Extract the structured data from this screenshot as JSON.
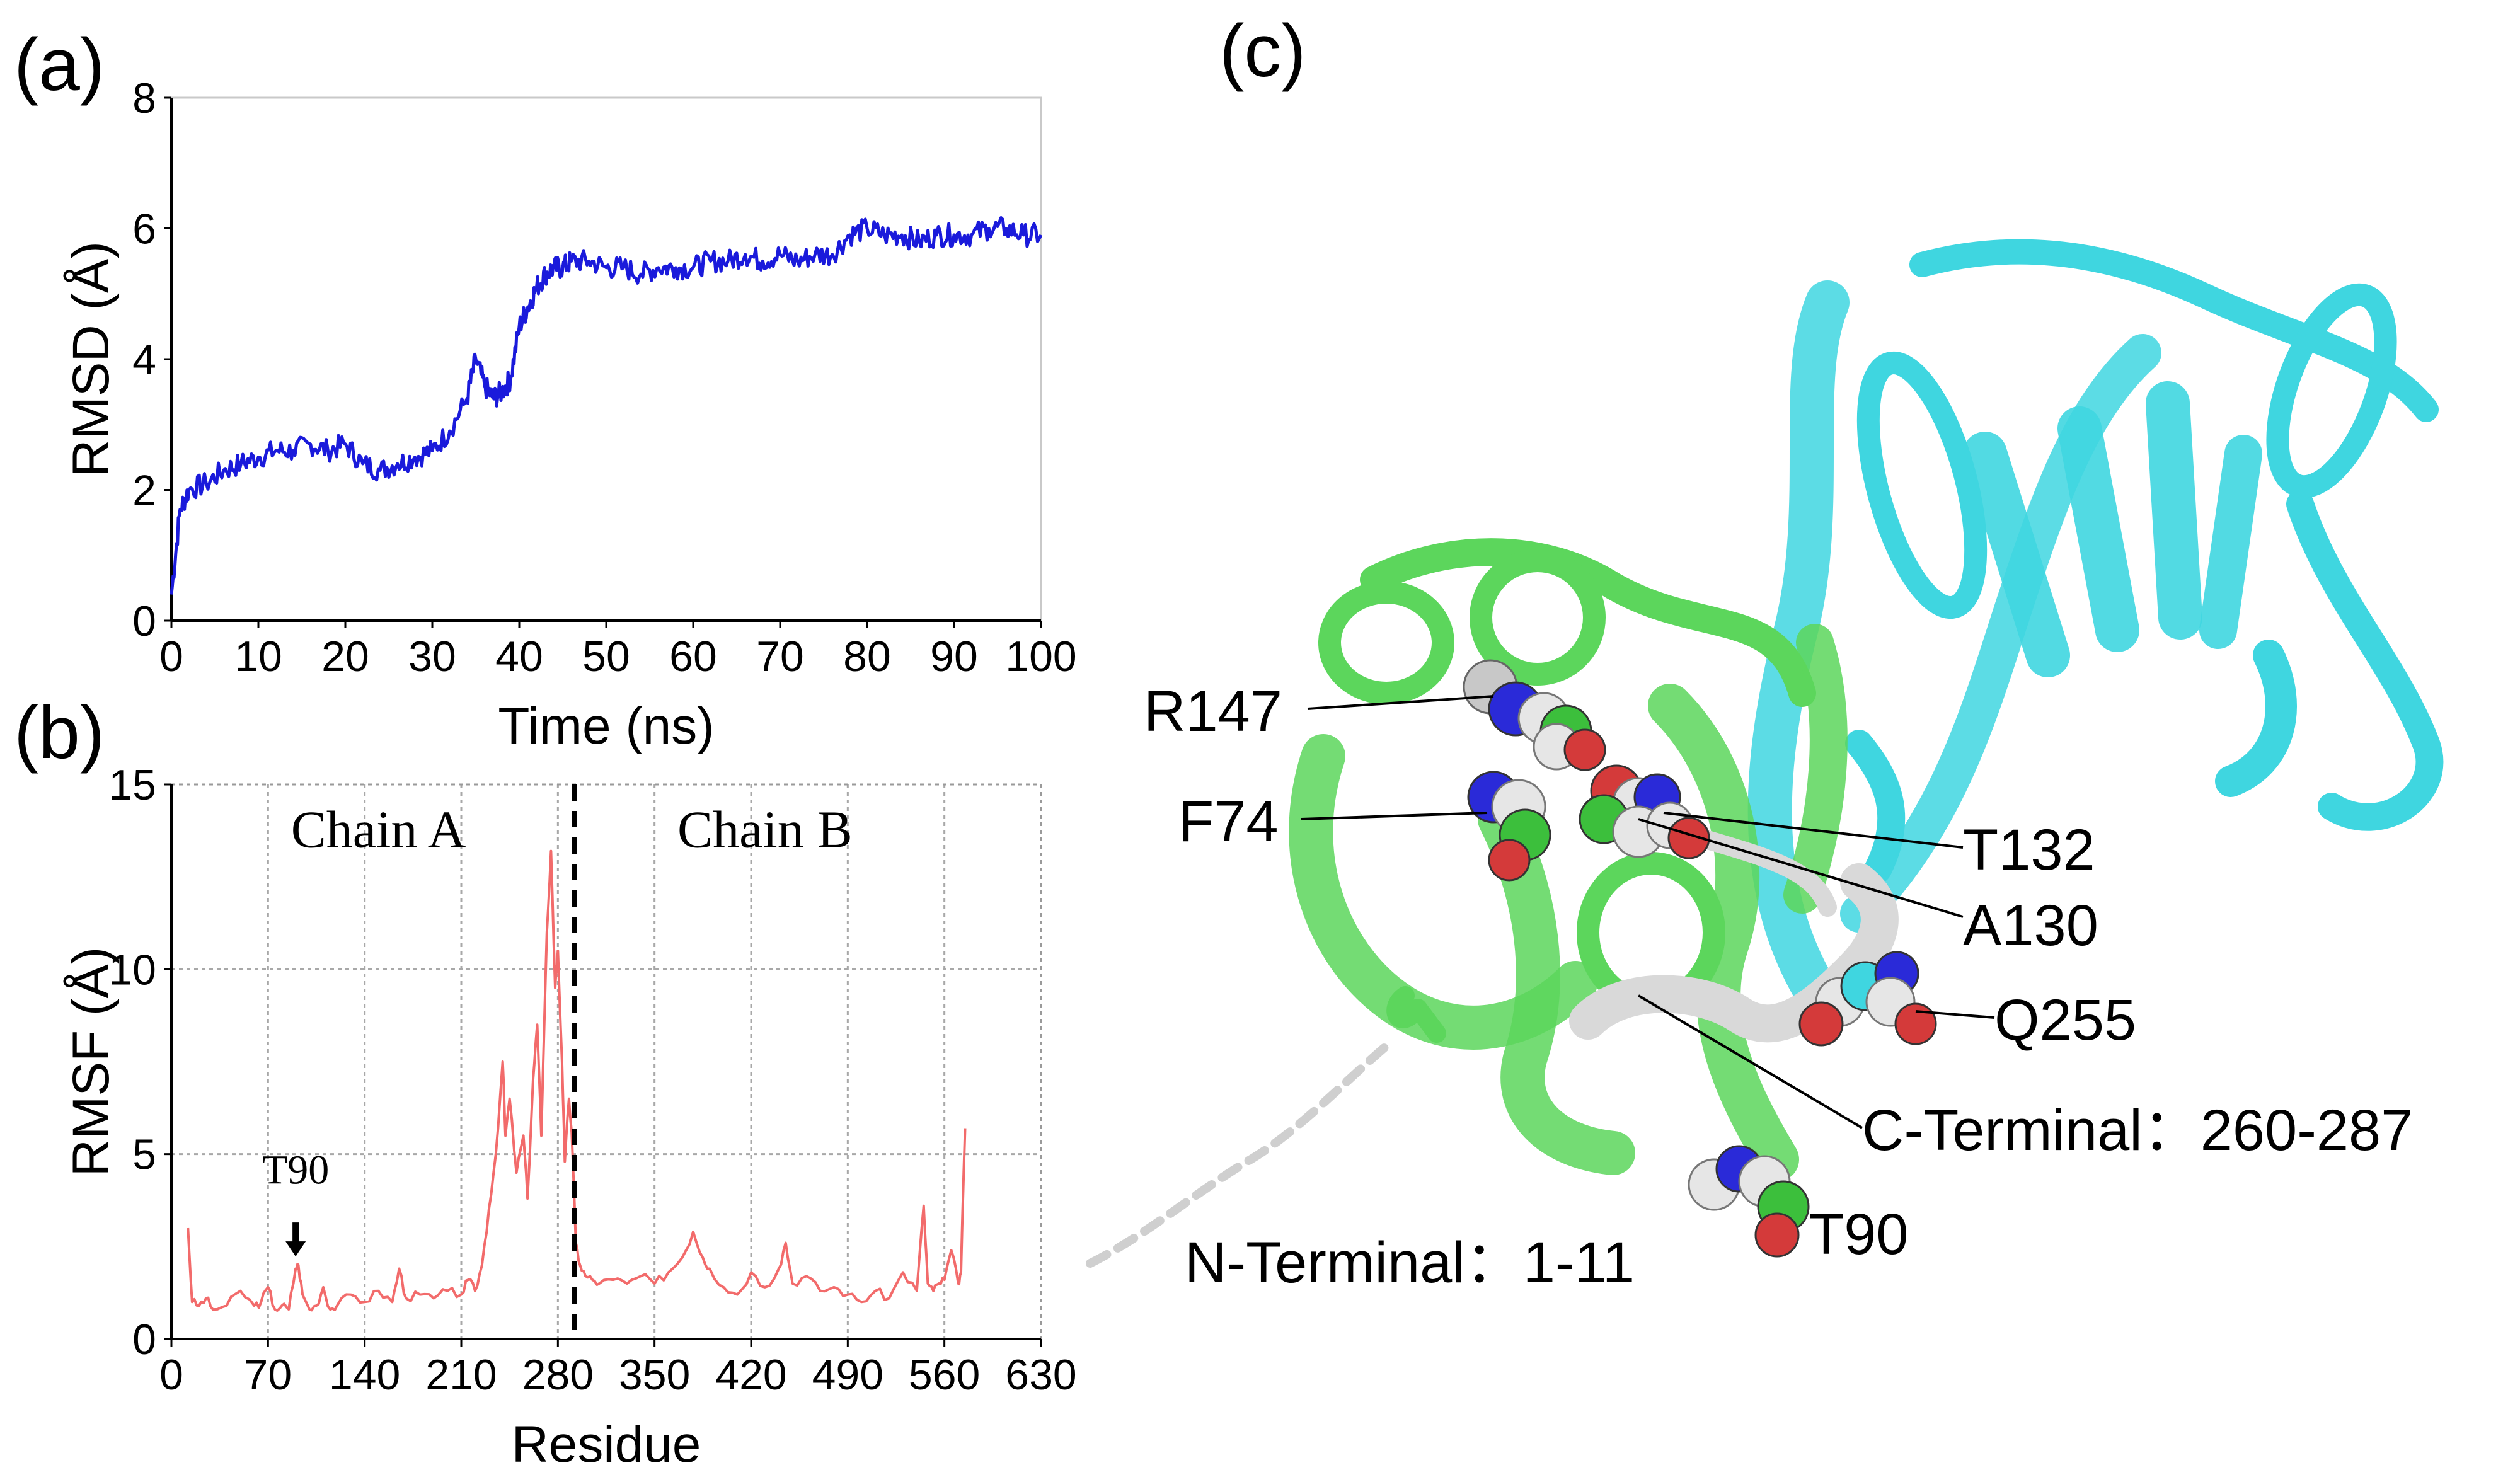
{
  "panels": {
    "a": "(a)",
    "b": "(b)",
    "c": "(c)"
  },
  "chart_data": [
    {
      "type": "line",
      "panel": "(a)",
      "xlabel": "Time (ns)",
      "ylabel": "RMSD (Å)",
      "xlim": [
        0,
        100
      ],
      "ylim": [
        0,
        8
      ],
      "xticks": [
        0,
        10,
        20,
        30,
        40,
        50,
        60,
        70,
        80,
        90,
        100
      ],
      "yticks": [
        0,
        2,
        4,
        6,
        8
      ],
      "grid": false,
      "color": "#1a1adb",
      "series": [
        {
          "x": [
            0,
            1,
            2,
            4,
            6,
            8,
            10,
            12,
            14,
            16,
            18,
            20,
            22,
            24,
            26,
            28,
            30,
            32,
            34,
            35,
            36,
            37,
            38,
            39,
            40,
            41,
            42,
            43,
            44,
            45,
            46,
            48,
            50,
            52,
            54,
            56,
            58,
            60,
            62,
            64,
            66,
            68,
            70,
            72,
            74,
            76,
            78,
            80,
            82,
            84,
            86,
            88,
            90,
            92,
            94,
            96,
            98,
            100
          ],
          "values": [
            0.4,
            1.7,
            2.0,
            2.1,
            2.3,
            2.4,
            2.5,
            2.6,
            2.6,
            2.7,
            2.6,
            2.7,
            2.4,
            2.3,
            2.4,
            2.5,
            2.6,
            2.9,
            3.4,
            4.0,
            3.6,
            3.4,
            3.5,
            3.7,
            4.5,
            4.8,
            5.1,
            5.3,
            5.4,
            5.4,
            5.5,
            5.5,
            5.4,
            5.4,
            5.3,
            5.4,
            5.4,
            5.4,
            5.5,
            5.5,
            5.6,
            5.5,
            5.6,
            5.5,
            5.6,
            5.6,
            5.9,
            6.0,
            5.9,
            5.9,
            5.8,
            5.9,
            5.9,
            5.9,
            6.0,
            6.0,
            5.9,
            5.9
          ]
        }
      ]
    },
    {
      "type": "line",
      "panel": "(b)",
      "xlabel": "Residue",
      "ylabel": "RMSF (Å)",
      "xlim": [
        0,
        630
      ],
      "ylim": [
        0,
        15
      ],
      "xticks": [
        0,
        70,
        140,
        210,
        280,
        350,
        420,
        490,
        560,
        630
      ],
      "yticks": [
        0,
        5,
        10,
        15
      ],
      "grid": true,
      "color": "#f26b6b",
      "divider_x": 292,
      "annotations": [
        {
          "text": "Chain A",
          "x": 150,
          "y": 13.3
        },
        {
          "text": "Chain B",
          "x": 430,
          "y": 13.3
        },
        {
          "text": "T90",
          "x": 90,
          "y": 4.2,
          "arrow_to": [
            90,
            2.3
          ]
        }
      ],
      "series": [
        {
          "x": [
            12,
            15,
            20,
            25,
            30,
            40,
            50,
            60,
            65,
            70,
            75,
            80,
            85,
            90,
            92,
            95,
            100,
            105,
            110,
            115,
            120,
            130,
            140,
            150,
            160,
            165,
            170,
            180,
            190,
            200,
            210,
            215,
            220,
            225,
            230,
            235,
            240,
            242,
            245,
            250,
            255,
            258,
            262,
            265,
            268,
            272,
            275,
            278,
            280,
            283,
            285,
            288,
            290,
            293,
            296,
            300,
            305,
            310,
            320,
            330,
            340,
            350,
            360,
            370,
            378,
            385,
            390,
            400,
            410,
            420,
            430,
            440,
            445,
            450,
            460,
            470,
            480,
            490,
            500,
            510,
            520,
            530,
            540,
            545,
            548,
            552,
            556,
            560,
            565,
            570,
            572,
            575
          ],
          "values": [
            3.0,
            1.0,
            0.9,
            1.1,
            0.8,
            0.9,
            1.3,
            0.9,
            1.0,
            1.4,
            0.8,
            0.9,
            0.8,
            1.9,
            2.0,
            1.2,
            0.8,
            0.9,
            1.4,
            0.8,
            0.9,
            1.2,
            1.0,
            1.3,
            1.0,
            1.9,
            1.1,
            1.2,
            1.1,
            1.3,
            1.2,
            1.6,
            1.3,
            2.0,
            3.5,
            5.0,
            7.5,
            5.5,
            6.5,
            4.5,
            5.5,
            3.8,
            7.0,
            8.5,
            5.5,
            11.0,
            13.2,
            9.5,
            10.5,
            7.5,
            4.8,
            6.5,
            5.6,
            2.6,
            2.0,
            1.7,
            1.6,
            1.5,
            1.6,
            1.5,
            1.7,
            1.5,
            1.8,
            2.2,
            2.9,
            2.2,
            1.9,
            1.4,
            1.2,
            1.8,
            1.4,
            1.9,
            2.6,
            1.5,
            1.7,
            1.3,
            1.4,
            1.2,
            1.0,
            1.3,
            1.1,
            1.8,
            1.3,
            3.6,
            1.5,
            1.3,
            1.5,
            1.6,
            2.4,
            1.5,
            1.8,
            5.7
          ]
        }
      ]
    }
  ],
  "structure": {
    "labels": {
      "r147": "R147",
      "f74": "F74",
      "t132": "T132",
      "a130": "A130",
      "q255": "Q255",
      "c_terminal": "C-Terminal：260-287",
      "t90": "T90",
      "n_terminal": "N-Terminal：1-11"
    },
    "colors": {
      "chain_a": "#5cd65c",
      "chain_b": "#3fd6e0",
      "terminal": "#d9d9d9"
    }
  }
}
